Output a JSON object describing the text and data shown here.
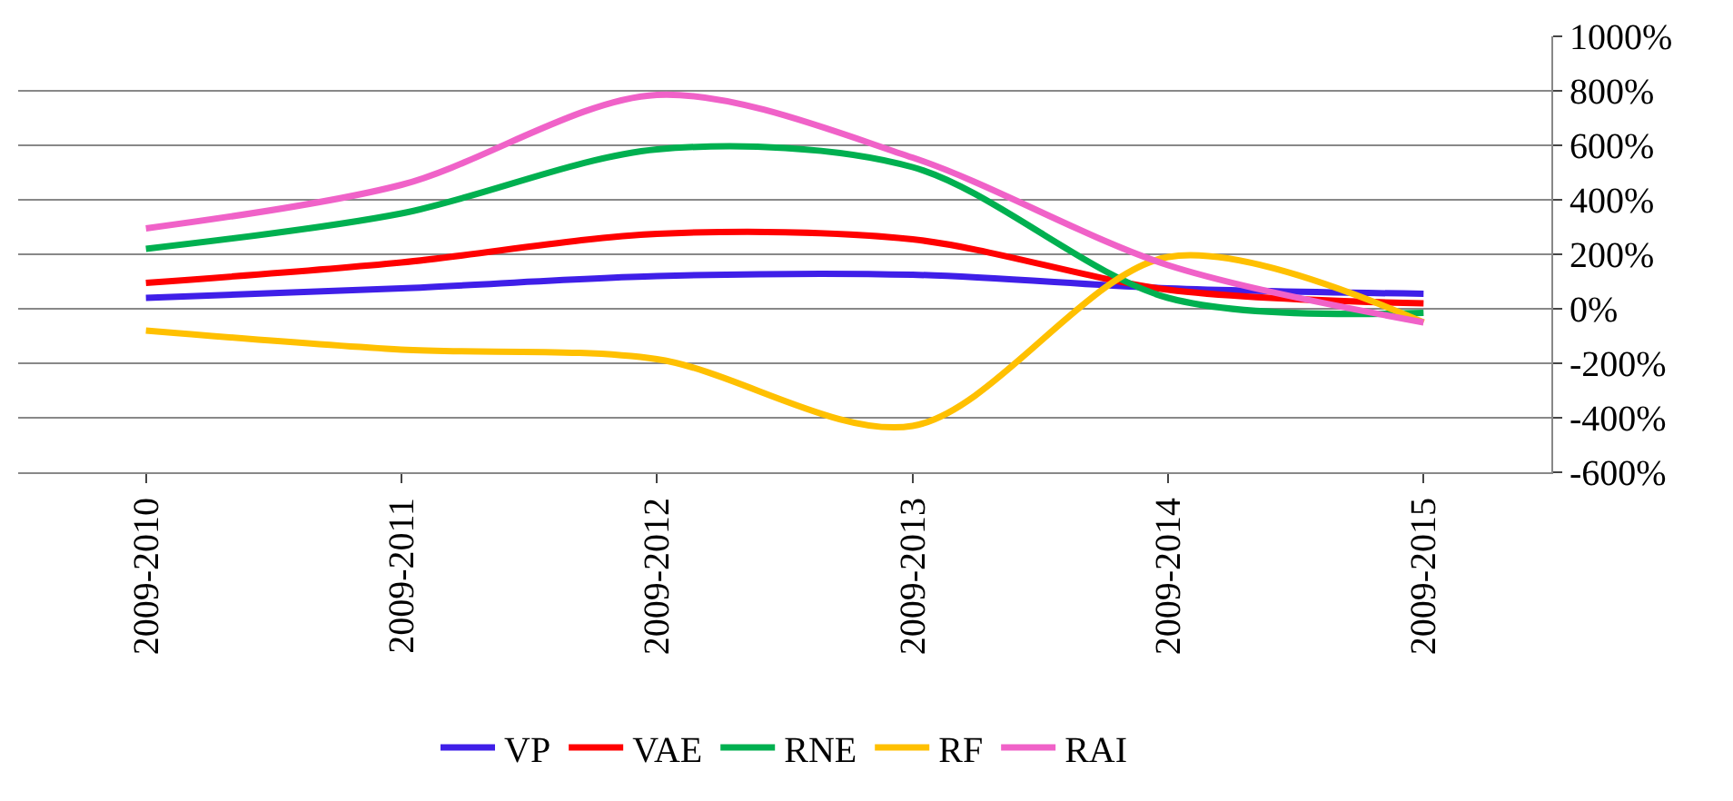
{
  "chart_data": {
    "type": "line",
    "categories": [
      "2009-2010",
      "2009-2011",
      "2009-2012",
      "2009-2013",
      "2009-2014",
      "2009-2015"
    ],
    "series": [
      {
        "name": "VP",
        "color": "#3f1fe8",
        "values": [
          40,
          75,
          120,
          125,
          75,
          55
        ]
      },
      {
        "name": "VAE",
        "color": "#ff0000",
        "values": [
          95,
          170,
          275,
          255,
          70,
          20
        ]
      },
      {
        "name": "RNE",
        "color": "#00b050",
        "values": [
          220,
          350,
          585,
          520,
          40,
          -15
        ]
      },
      {
        "name": "RF",
        "color": "#ffc000",
        "values": [
          -80,
          -150,
          -185,
          -430,
          190,
          -50
        ]
      },
      {
        "name": "RAI",
        "color": "#f062c8",
        "values": [
          295,
          455,
          785,
          555,
          160,
          -50
        ]
      }
    ],
    "ylim": [
      -600,
      1000
    ],
    "yticks": [
      {
        "value": -600,
        "label": "-600%"
      },
      {
        "value": -400,
        "label": "-400%"
      },
      {
        "value": -200,
        "label": "-200%"
      },
      {
        "value": 0,
        "label": "0%"
      },
      {
        "value": 200,
        "label": "200%"
      },
      {
        "value": 400,
        "label": "400%"
      },
      {
        "value": 600,
        "label": "600%"
      },
      {
        "value": 800,
        "label": "800%"
      },
      {
        "value": 1000,
        "label": "1000%"
      }
    ],
    "grid": "y",
    "legend": "bottom",
    "marker": "none",
    "line_style": "solid"
  }
}
